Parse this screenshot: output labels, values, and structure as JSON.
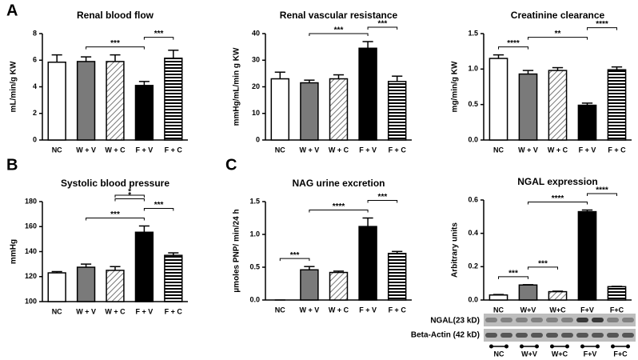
{
  "panels": [
    "A",
    "B",
    "C"
  ],
  "chart_data": [
    {
      "type": "bar",
      "title": "Renal blood flow",
      "y_label": "mL/min/g KW",
      "categories": [
        "NC",
        "W + V",
        "W + C",
        "F + V",
        "F + C"
      ],
      "values": [
        5.85,
        5.9,
        5.9,
        4.1,
        6.15
      ],
      "errors": [
        0.55,
        0.35,
        0.5,
        0.3,
        0.6
      ],
      "bar_fills": [
        "white",
        "#7a7a7a",
        "hatch",
        "black",
        "stripes"
      ],
      "ylim": [
        0,
        8
      ],
      "yticks": [
        0,
        2,
        4,
        6,
        8
      ],
      "significance": [
        {
          "from": 1,
          "to": 3,
          "label": "***"
        },
        {
          "from": 3,
          "to": 4,
          "label": "***"
        }
      ]
    },
    {
      "type": "bar",
      "title": "Renal vascular resistance",
      "y_label": "mmHg/mL/min g KW",
      "categories": [
        "NC",
        "W + V",
        "W + C",
        "F + V",
        "F + C"
      ],
      "values": [
        23,
        21.5,
        23,
        34.5,
        22
      ],
      "errors": [
        2.5,
        1,
        1.5,
        2.5,
        2
      ],
      "bar_fills": [
        "white",
        "#7a7a7a",
        "hatch",
        "black",
        "stripes"
      ],
      "ylim": [
        0,
        40
      ],
      "yticks": [
        0,
        10,
        20,
        30,
        40
      ],
      "significance": [
        {
          "from": 1,
          "to": 3,
          "label": "***"
        },
        {
          "from": 3,
          "to": 4,
          "label": "***"
        }
      ]
    },
    {
      "type": "bar",
      "title": "Creatinine clearance",
      "y_label": "mg/min/g KW",
      "categories": [
        "NC",
        "W + V",
        "W + C",
        "F + V",
        "F + C"
      ],
      "values": [
        1.15,
        0.93,
        0.98,
        0.49,
        0.99
      ],
      "errors": [
        0.05,
        0.05,
        0.04,
        0.03,
        0.04
      ],
      "bar_fills": [
        "white",
        "#7a7a7a",
        "hatch",
        "black",
        "stripes"
      ],
      "ylim": [
        0,
        1.5
      ],
      "yticks": [
        {
          "value": 0,
          "label": "0.0"
        },
        0.5,
        {
          "value": 1,
          "label": "1.0"
        },
        1.5
      ],
      "significance": [
        {
          "from": 0,
          "to": 1,
          "label": "****"
        },
        {
          "from": 1,
          "to": 3,
          "label": "**"
        },
        {
          "from": 3,
          "to": 4,
          "label": "****"
        }
      ]
    },
    {
      "type": "bar",
      "title": "Systolic blood pressure",
      "y_label": "mmHg",
      "categories": [
        "NC",
        "W + V",
        "W + C",
        "F + V",
        "F + C"
      ],
      "values": [
        123,
        127.5,
        125,
        155.5,
        137
      ],
      "errors": [
        1,
        2.5,
        3,
        5,
        2
      ],
      "bar_fills": [
        "white",
        "#7a7a7a",
        "hatch",
        "black",
        "stripes"
      ],
      "ylim": [
        100,
        180
      ],
      "yticks": [
        100,
        120,
        140,
        160,
        180
      ],
      "significance": [
        {
          "from": 1,
          "to": 3,
          "label": "***"
        },
        {
          "from": 3,
          "to": 4,
          "label": "***"
        },
        {
          "from": 2,
          "to": 3,
          "label": "*"
        },
        {
          "from": 2,
          "to": 3,
          "label": "*"
        }
      ]
    },
    {
      "type": "bar",
      "title": "NAG urine excretion",
      "y_label": "µmoles PNP/ min/24 h",
      "categories": [
        "NC",
        "W + V",
        "W + C",
        "F + V",
        "F + C"
      ],
      "values": [
        0,
        0.46,
        0.42,
        1.12,
        0.71
      ],
      "errors": [
        0,
        0.05,
        0.02,
        0.13,
        0.03
      ],
      "bar_fills": [
        "white",
        "#7a7a7a",
        "hatch",
        "black",
        "stripes"
      ],
      "ylim": [
        0,
        1.5
      ],
      "yticks": [
        {
          "value": 0,
          "label": "0.0"
        },
        0.5,
        {
          "value": 1,
          "label": "1.0"
        },
        1.5
      ],
      "significance": [
        {
          "from": 0,
          "to": 1,
          "label": "***"
        },
        {
          "from": 1,
          "to": 3,
          "label": "****"
        },
        {
          "from": 3,
          "to": 4,
          "label": "***"
        }
      ]
    },
    {
      "type": "bar",
      "title": "NGAL expression",
      "y_label": "Arbitrary units",
      "categories": [
        "NC",
        "W+V",
        "W+C",
        "F+V",
        "F+C"
      ],
      "values": [
        0.03,
        0.09,
        0.05,
        0.53,
        0.08
      ],
      "errors": [
        0.003,
        0.002,
        0.003,
        0.01,
        0.002
      ],
      "bar_fills": [
        "white",
        "#7a7a7a",
        "hatch",
        "black",
        "stripes"
      ],
      "ylim": [
        0,
        0.6
      ],
      "yticks": [
        {
          "value": 0,
          "label": "0.0"
        },
        0.2,
        0.4,
        0.6
      ],
      "significance": [
        {
          "from": 0,
          "to": 1,
          "label": "***"
        },
        {
          "from": 1,
          "to": 2,
          "label": "***"
        },
        {
          "from": 1,
          "to": 3,
          "label": "****"
        },
        {
          "from": 3,
          "to": 4,
          "label": "****"
        }
      ]
    }
  ],
  "blot": {
    "rows": [
      "NGAL(23 kD)",
      "Beta-Actin (42 kD)"
    ],
    "groups": [
      "NC",
      "W+V",
      "W+C",
      "F+V",
      "F+C"
    ]
  }
}
